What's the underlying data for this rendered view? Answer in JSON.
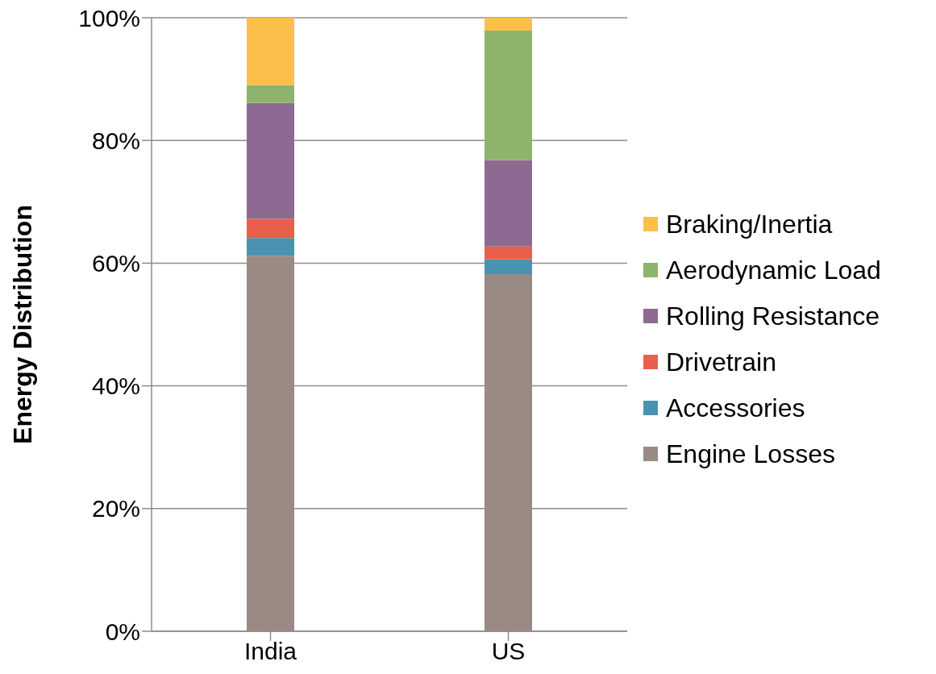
{
  "chart_data": {
    "type": "bar",
    "stacked": true,
    "ylabel": "Energy Distribution",
    "categories": [
      "India",
      "US"
    ],
    "series": [
      {
        "name": "Engine Losses",
        "color": "#9a8a84",
        "values": [
          61.2,
          58.2
        ]
      },
      {
        "name": "Accessories",
        "color": "#4a93b0",
        "values": [
          2.9,
          2.4
        ]
      },
      {
        "name": "Drivetrain",
        "color": "#e8604c",
        "values": [
          3.1,
          2.1
        ]
      },
      {
        "name": "Rolling Resistance",
        "color": "#8e6a93",
        "values": [
          18.9,
          14.1
        ]
      },
      {
        "name": "Aerodynamic Load",
        "color": "#8db36d",
        "values": [
          2.9,
          21.1
        ]
      },
      {
        "name": "Braking/Inertia",
        "color": "#fbbf4a",
        "values": [
          11.0,
          2.1
        ]
      }
    ],
    "ylim": [
      0,
      100
    ],
    "yticks": [
      {
        "value": 0,
        "label": "0%"
      },
      {
        "value": 20,
        "label": "20%"
      },
      {
        "value": 40,
        "label": "40%"
      },
      {
        "value": 60,
        "label": "60%"
      },
      {
        "value": 80,
        "label": "80%"
      },
      {
        "value": 100,
        "label": "100%"
      }
    ],
    "grid": "y",
    "legend": "right"
  }
}
